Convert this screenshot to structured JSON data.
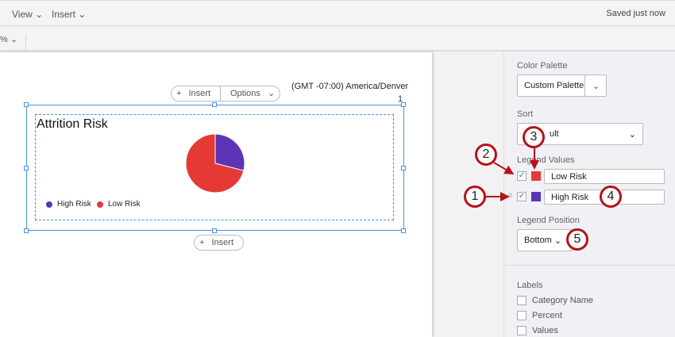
{
  "menubar": {
    "items": [
      "View",
      "Insert"
    ],
    "status": "Saved just now"
  },
  "toolbar": {
    "zoom": "%"
  },
  "canvas": {
    "timezone": "(GMT -07:00) America/Denver",
    "page_number": "1",
    "insert_label": "Insert",
    "options_label": "Options",
    "insert_below_label": "Insert"
  },
  "chart_data": {
    "type": "pie",
    "title": "Attrition Risk",
    "legend_position": "bottom",
    "series": [
      {
        "name": "High Risk",
        "value": 29,
        "color": "#5b35b5"
      },
      {
        "name": "Low Risk",
        "value": 71,
        "color": "#e53935"
      }
    ]
  },
  "panel": {
    "color_palette_label": "Color Palette",
    "color_palette_value": "Custom Palette",
    "sort_label": "Sort",
    "sort_value": "ult",
    "legend_values_label": "Legend Values",
    "legend_values": [
      {
        "label": "Low Risk",
        "color": "#e53935",
        "checked": true
      },
      {
        "label": "High Risk",
        "color": "#5b35b5",
        "checked": true
      }
    ],
    "legend_position_label": "Legend Position",
    "legend_position_value": "Bottom",
    "labels_label": "Labels",
    "labels_options": [
      {
        "label": "Category Name",
        "checked": false
      },
      {
        "label": "Percent",
        "checked": false
      },
      {
        "label": "Values",
        "checked": false
      }
    ]
  },
  "callouts": [
    "1",
    "2",
    "3",
    "4",
    "5"
  ],
  "colors": {
    "accent": "#4a90e2",
    "callout": "#b5121b"
  }
}
